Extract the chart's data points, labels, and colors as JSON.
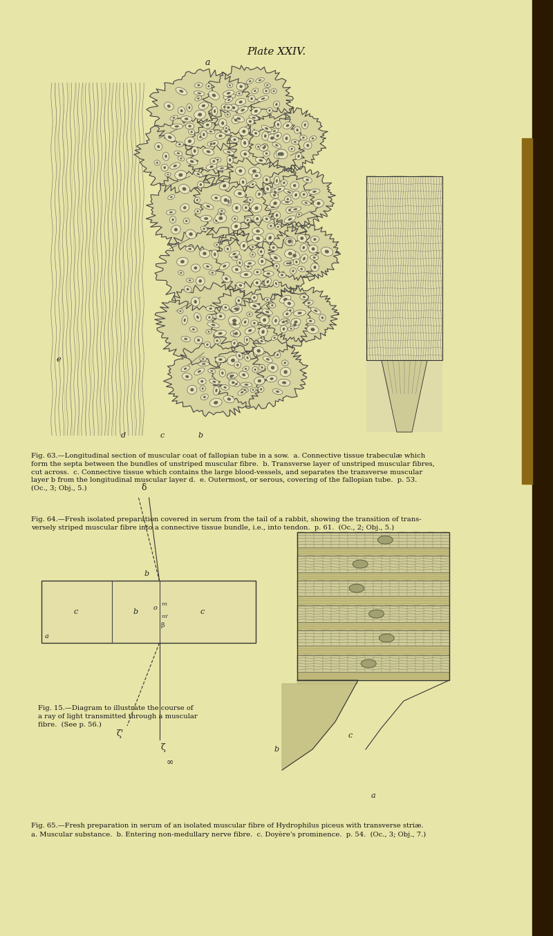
{
  "bg_color": "#e8e5a8",
  "text_color": "#111111",
  "dark_border_color": "#2a1800",
  "title": "Plate XXIV.",
  "title_fontsize": 11,
  "caption_fontsize": 7.2,
  "caption_fig63": "Fig. 63.—Longitudinal section of muscular coat of fallopian tube in a sow.  a. Connective tissue trabeculae which\nform the septa between the bundles of unstriped muscular fibre.  b. Transverse layer of unstriped muscular fibres,\ncut across.  c. Connective tissue which contains the large blood-vessels, and separates the transverse muscular\nlayer b from the longitudinal muscular layer d.  e. Outermost, or serous, covering of the fallopian tube.  p. 53.\n(Oc., 3; Obj., 5.)",
  "caption_fig64": "Fig. 64.—Fresh isolated preparation covered in serum from the tail of a rabbit, showing the transition of trans-\nversely striped muscular fibre into a connective tissue bundle, i.e., into tendon.  p. 61.  (Oc., 2; Obj., 5.)",
  "caption_fig15": "Fig. 15.—Diagram to illustrate the course of\na ray of light transmitted through a muscular\nfibre.  (See p. 56.)",
  "caption_fig65": "Fig. 65.—Fresh preparation in serum of an isolated muscular fibre of Hydrophilus piceus with transverse striæ.\na. Muscular substance.  b. Entering non-medullary nerve fibre.  c. Doyère’s prominence.  p. 54.  (Oc., 3; Obj., 7.)"
}
